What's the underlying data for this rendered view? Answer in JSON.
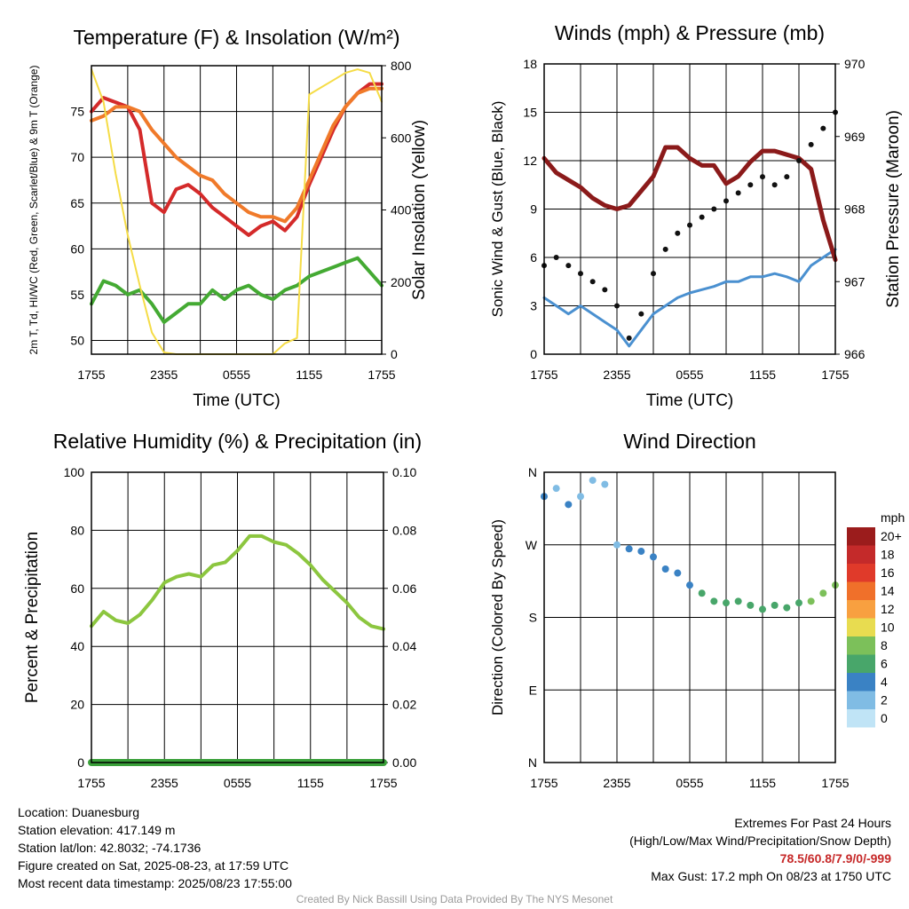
{
  "chart_data": [
    {
      "type": "line",
      "title": "Temperature (F) & Insolation (W/m²)",
      "xlabel": "Time (UTC)",
      "ylabel": "2m T, Td, HI/WC (Red, Green, Scarlet/Blue) & 9m T (Orange)",
      "ylabel_right": "Solar Insolation (Yellow)",
      "x_ticks": [
        "1755",
        "2355",
        "0555",
        "1155",
        "1755"
      ],
      "ylim": [
        48.5,
        80
      ],
      "y_ticks": [
        50,
        55,
        60,
        65,
        70,
        75
      ],
      "ylim_right": [
        0,
        800
      ],
      "y_ticks_right": [
        0,
        200,
        400,
        600,
        800
      ],
      "x_hours": [
        0,
        1,
        2,
        3,
        4,
        5,
        6,
        7,
        8,
        9,
        10,
        11,
        12,
        13,
        14,
        15,
        16,
        17,
        18,
        19,
        20,
        21,
        22,
        23,
        24
      ],
      "series": [
        {
          "color": "#d42a2a",
          "axis": "left",
          "values": [
            75,
            76.5,
            76,
            75.5,
            73,
            65,
            64,
            66.5,
            67,
            66,
            64.5,
            63.5,
            62.5,
            61.5,
            62.5,
            63,
            62,
            63.5,
            67,
            70,
            73,
            75.5,
            77,
            78,
            78
          ]
        },
        {
          "color": "#f07a2a",
          "axis": "left",
          "values": [
            74,
            74.5,
            75.5,
            75.5,
            75,
            73,
            71.5,
            70,
            69,
            68,
            67.5,
            66,
            65,
            64,
            63.5,
            63.5,
            63,
            64.5,
            67.5,
            70.5,
            73.5,
            75.5,
            77,
            77.5,
            77.5
          ]
        },
        {
          "color": "#44aa33",
          "axis": "left",
          "values": [
            54,
            56.5,
            56,
            55,
            55.5,
            54,
            52,
            53,
            54,
            54,
            55.5,
            54.5,
            55.5,
            56,
            55,
            54.5,
            55.5,
            56,
            57,
            57.5,
            58,
            58.5,
            59,
            57.5,
            56
          ]
        },
        {
          "color": "#f5dc46",
          "axis": "right",
          "values": [
            790,
            700,
            500,
            330,
            190,
            60,
            5,
            0,
            0,
            0,
            0,
            0,
            0,
            0,
            0,
            0,
            30,
            45,
            720,
            740,
            760,
            780,
            790,
            780,
            700
          ]
        }
      ]
    },
    {
      "type": "line",
      "title": "Winds (mph) & Pressure (mb)",
      "xlabel": "Time (UTC)",
      "ylabel": "Sonic Wind & Gust (Blue, Black)",
      "ylabel_right": "Station Pressure (Maroon)",
      "x_ticks": [
        "1755",
        "2355",
        "0555",
        "1155",
        "1755"
      ],
      "ylim": [
        0,
        18
      ],
      "y_ticks": [
        0,
        3,
        6,
        9,
        12,
        15,
        18
      ],
      "ylim_right": [
        966,
        970
      ],
      "y_ticks_right": [
        966,
        967,
        968,
        969,
        970
      ],
      "x_hours": [
        0,
        1,
        2,
        3,
        4,
        5,
        6,
        7,
        8,
        9,
        10,
        11,
        12,
        13,
        14,
        15,
        16,
        17,
        18,
        19,
        20,
        21,
        22,
        23,
        24
      ],
      "series": [
        {
          "color": "#4a90d0",
          "axis": "left",
          "values": [
            3.5,
            3,
            2.5,
            3,
            2.5,
            2,
            1.5,
            0.5,
            1.5,
            2.5,
            3,
            3.5,
            3.8,
            4,
            4.2,
            4.5,
            4.5,
            4.8,
            4.8,
            5,
            4.8,
            4.5,
            5.5,
            6,
            6.5
          ]
        },
        {
          "color": "#8b1a1a",
          "axis": "right",
          "values": [
            968.7,
            968.5,
            968.4,
            968.3,
            968.15,
            968.05,
            968.0,
            968.05,
            968.25,
            968.45,
            968.85,
            968.85,
            968.7,
            968.6,
            968.6,
            968.35,
            968.45,
            968.65,
            968.8,
            968.8,
            968.75,
            968.7,
            968.55,
            967.85,
            967.3
          ]
        },
        {
          "color": "#111111",
          "axis": "left",
          "markers": true,
          "values": [
            5.5,
            6,
            5.5,
            5,
            4.5,
            4,
            3,
            1,
            2.5,
            5,
            6.5,
            7.5,
            8,
            8.5,
            9,
            9.5,
            10,
            10.5,
            11,
            10.5,
            11,
            12,
            13,
            14,
            15
          ]
        }
      ]
    },
    {
      "type": "line",
      "title": "Relative Humidity (%) & Precipitation (in)",
      "xlabel": "",
      "ylabel": "Percent & Precipitation",
      "x_ticks": [
        "1755",
        "2355",
        "0555",
        "1155",
        "1755"
      ],
      "ylim": [
        0,
        100
      ],
      "y_ticks": [
        0,
        20,
        40,
        60,
        80,
        100
      ],
      "ylim_right": [
        0,
        0.1
      ],
      "y_ticks_right": [
        "0.00",
        "0.02",
        "0.04",
        "0.06",
        "0.08",
        "0.10"
      ],
      "x_hours": [
        0,
        1,
        2,
        3,
        4,
        5,
        6,
        7,
        8,
        9,
        10,
        11,
        12,
        13,
        14,
        15,
        16,
        17,
        18,
        19,
        20,
        21,
        22,
        23,
        24
      ],
      "series": [
        {
          "color": "#8cc63f",
          "axis": "left",
          "values": [
            47,
            52,
            49,
            48,
            51,
            56,
            62,
            64,
            65,
            64,
            68,
            69,
            73,
            78,
            78,
            76,
            75,
            72,
            68,
            63,
            59,
            55,
            50,
            47,
            46
          ]
        },
        {
          "color": "#3aa03a",
          "axis": "left",
          "values": [
            0,
            0,
            0,
            0,
            0,
            0,
            0,
            0,
            0,
            0,
            0,
            0,
            0,
            0,
            0,
            0,
            0,
            0,
            0,
            0,
            0,
            0,
            0,
            0,
            0
          ]
        }
      ]
    },
    {
      "type": "scatter",
      "title": "Wind Direction",
      "xlabel": "",
      "ylabel": "Direction (Colored By Speed)",
      "x_ticks": [
        "1755",
        "2355",
        "0555",
        "1155",
        "1755"
      ],
      "y_ticks": [
        "N",
        "E",
        "S",
        "W",
        "N"
      ],
      "ylim": [
        0,
        360
      ],
      "legend": {
        "title": "mph",
        "labels": [
          "20+",
          "18",
          "16",
          "14",
          "12",
          "10",
          "8",
          "6",
          "4",
          "2",
          "0"
        ],
        "colors": [
          "#9b1c1c",
          "#c42a2a",
          "#e03a2a",
          "#f0702a",
          "#f8a040",
          "#e8dc50",
          "#7cc05a",
          "#48a66a",
          "#3a82c4",
          "#80bce4",
          "#c0e4f6"
        ]
      },
      "x_hours": [
        0,
        1,
        2,
        3,
        4,
        5,
        6,
        7,
        8,
        9,
        10,
        11,
        12,
        13,
        14,
        15,
        16,
        17,
        18,
        19,
        20,
        21,
        22,
        23,
        24
      ],
      "values": [
        330,
        340,
        320,
        330,
        350,
        345,
        270,
        265,
        262,
        255,
        240,
        235,
        220,
        210,
        200,
        198,
        200,
        195,
        190,
        195,
        192,
        198,
        200,
        210,
        220
      ],
      "speeds": [
        3,
        2,
        3,
        2,
        2,
        1,
        1,
        3,
        3,
        4,
        4,
        4,
        4,
        5,
        5,
        5,
        5,
        5,
        6,
        6,
        6,
        6,
        7,
        7,
        7
      ]
    }
  ],
  "footer": {
    "location": "Location: Duanesburg",
    "elevation": "Station elevation: 417.149 m",
    "latlon": "Station lat/lon: 42.8032; -74.1736",
    "created": "Figure created on Sat, 2025-08-23, at 17:59 UTC",
    "recent": "Most recent data timestamp: 2025/08/23 17:55:00",
    "extremes_title": "Extremes For Past 24 Hours",
    "extremes_sub": "(High/Low/Max Wind/Precipitation/Snow Depth)",
    "extremes_values": "78.5/60.8/7.9/0/-999",
    "max_gust": "Max Gust: 17.2 mph On 08/23 at 1750 UTC",
    "credit": "Created By Nick Bassill Using Data Provided By The NYS Mesonet"
  }
}
